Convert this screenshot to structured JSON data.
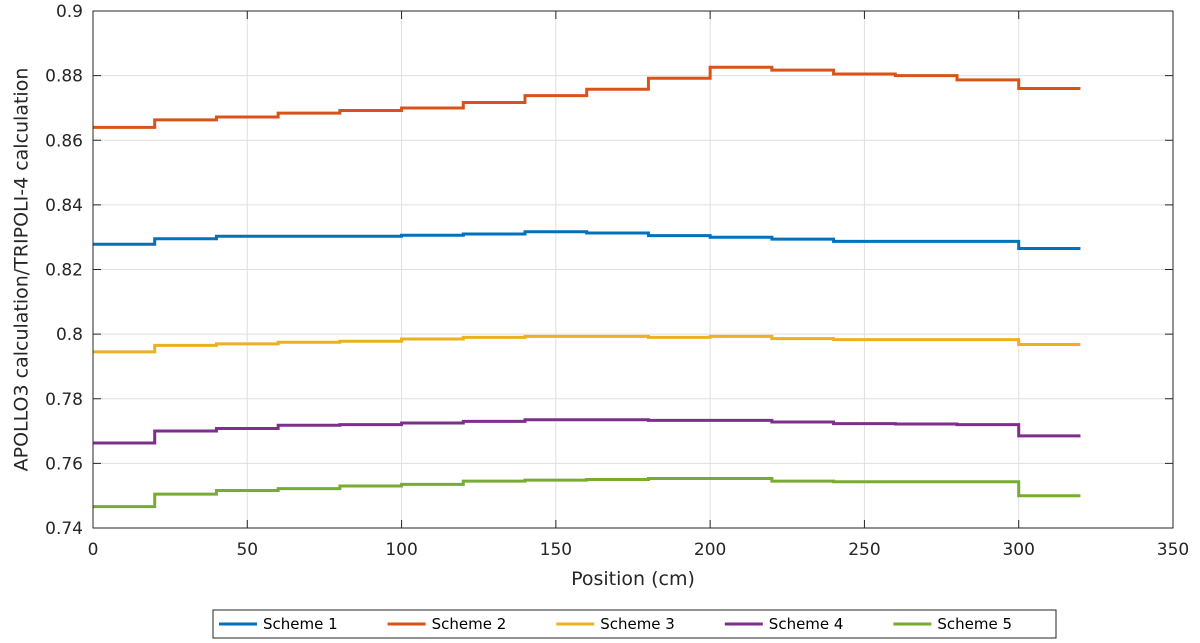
{
  "chart_data": {
    "type": "line",
    "title": "",
    "xlabel": "Position (cm)",
    "ylabel": "APOLLO3 calculation/TRIPOLI-4 calculation",
    "xlim": [
      0,
      350
    ],
    "ylim": [
      0.74,
      0.9
    ],
    "xticks": [
      0,
      50,
      100,
      150,
      200,
      250,
      300,
      350
    ],
    "yticks": [
      0.74,
      0.76,
      0.78,
      0.8,
      0.82,
      0.84,
      0.86,
      0.88,
      0.9
    ],
    "xtick_labels": [
      "0",
      "50",
      "100",
      "150",
      "200",
      "250",
      "300",
      "350"
    ],
    "ytick_labels": [
      "0.74",
      "0.76",
      "0.78",
      "0.8",
      "0.82",
      "0.84",
      "0.86",
      "0.88",
      "0.9"
    ],
    "grid": true,
    "legend_position": "bottom-outside",
    "step": true,
    "bin_edges": [
      0,
      20,
      40,
      60,
      80,
      100,
      120,
      140,
      160,
      180,
      200,
      220,
      240,
      260,
      280,
      300,
      320
    ],
    "series": [
      {
        "name": "Scheme 1",
        "color": "#0072BD",
        "values": [
          0.8278,
          0.8295,
          0.8303,
          0.8303,
          0.8303,
          0.8306,
          0.831,
          0.8317,
          0.8313,
          0.8305,
          0.83,
          0.8294,
          0.8287,
          0.8287,
          0.8287,
          0.8282
        ]
      },
      {
        "name": "Scheme 2",
        "color": "#D95319",
        "values": [
          0.864,
          0.8663,
          0.8672,
          0.8684,
          0.8692,
          0.87,
          0.8717,
          0.8738,
          0.8758,
          0.8792,
          0.8826,
          0.8817,
          0.8805,
          0.88,
          0.8787,
          0.8778
        ]
      },
      {
        "name": "Scheme 3",
        "color": "#EDB120",
        "values": [
          0.7945,
          0.7965,
          0.797,
          0.7975,
          0.7978,
          0.7985,
          0.799,
          0.7993,
          0.7993,
          0.799,
          0.7993,
          0.7986,
          0.7983,
          0.7983,
          0.7983,
          0.798
        ]
      },
      {
        "name": "Scheme 4",
        "color": "#7E2F8E",
        "values": [
          0.7663,
          0.77,
          0.7708,
          0.7718,
          0.772,
          0.7725,
          0.773,
          0.7735,
          0.7735,
          0.7733,
          0.7733,
          0.7728,
          0.7723,
          0.7722,
          0.772,
          0.7718
        ]
      },
      {
        "name": "Scheme 5",
        "color": "#77AC30",
        "values": [
          0.7466,
          0.7505,
          0.7516,
          0.7522,
          0.753,
          0.7535,
          0.7545,
          0.7548,
          0.755,
          0.7553,
          0.7553,
          0.7545,
          0.7543,
          0.7543,
          0.7543,
          0.7536
        ]
      }
    ],
    "last_bin_values": [
      0.8265,
      0.876,
      0.7968,
      0.7685,
      0.75
    ]
  }
}
